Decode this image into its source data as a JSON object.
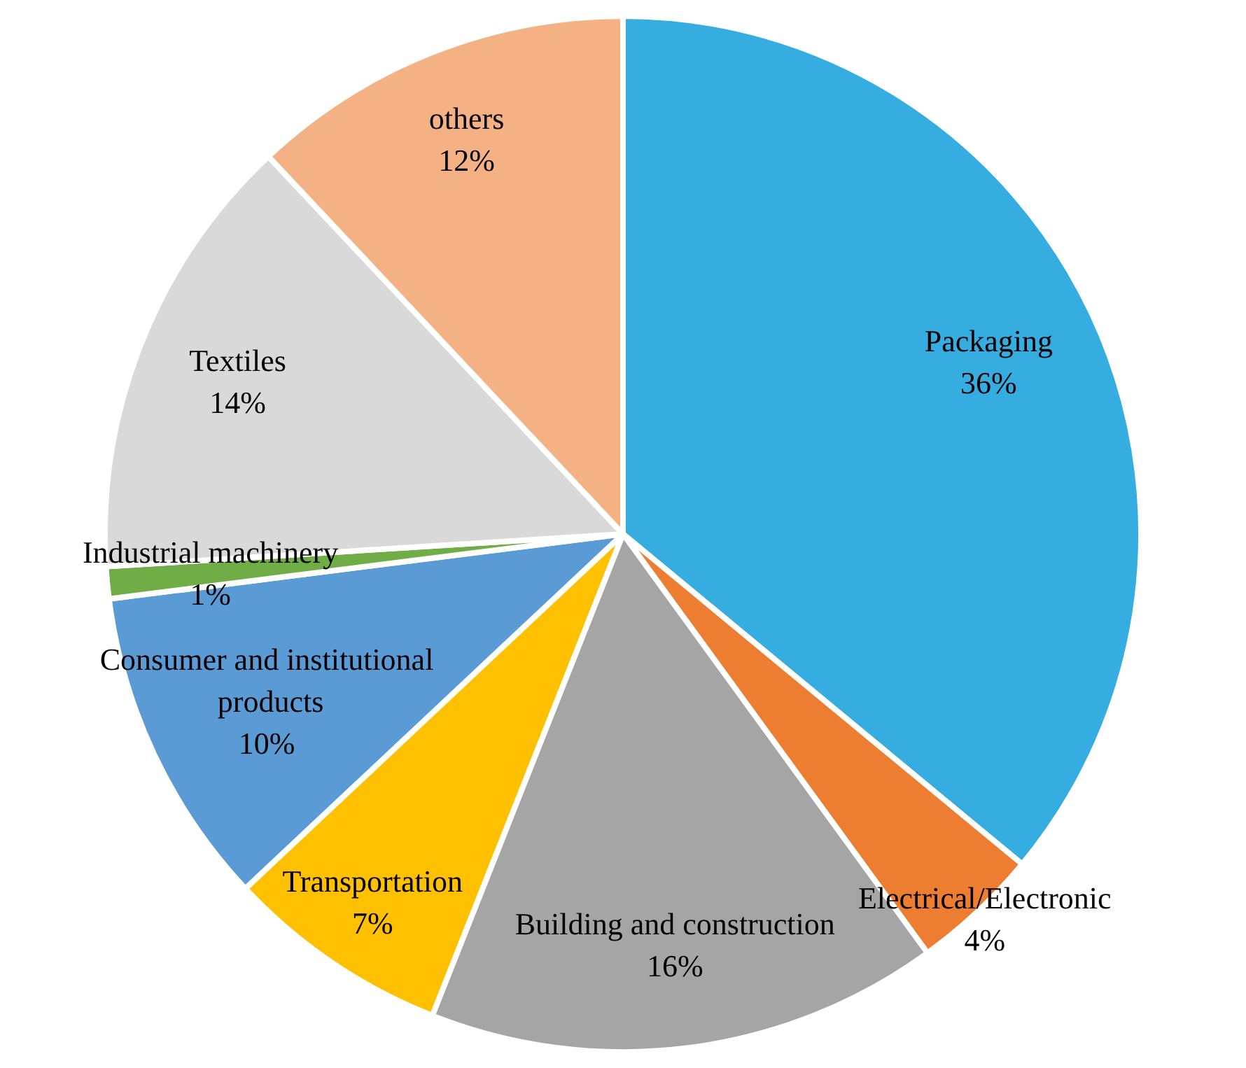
{
  "chart_data": {
    "type": "pie",
    "categories": [
      "Packaging",
      "Electrical/Electronic",
      "Building and construction",
      "Transportation",
      "Consumer and institutional products",
      "Industrial machinery",
      "Textiles",
      "others"
    ],
    "values": [
      36,
      4,
      16,
      7,
      10,
      1,
      14,
      12
    ],
    "value_labels": [
      "36%",
      "4%",
      "16%",
      "7%",
      "10%",
      "1%",
      "14%",
      "12%"
    ],
    "colors": [
      "#35ade0",
      "#ed7d31",
      "#a5a5a5",
      "#ffc000",
      "#5b9bd5",
      "#70ad47",
      "#d9d9d9",
      "#f4b183"
    ],
    "legend": false
  }
}
